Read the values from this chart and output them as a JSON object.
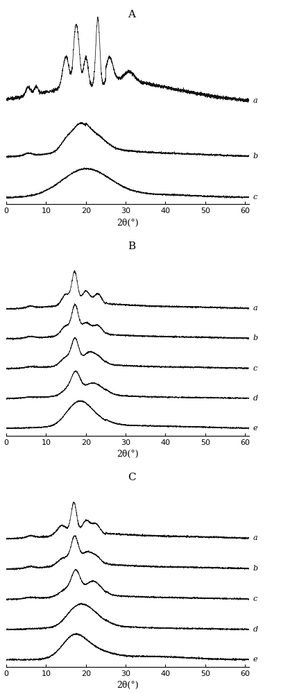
{
  "panel_labels": [
    "A",
    "B",
    "C"
  ],
  "xlabel": "2θ(°)",
  "xlim": [
    0,
    61
  ],
  "xticks": [
    0,
    10,
    20,
    30,
    40,
    50,
    60
  ],
  "background_color": "#ffffff",
  "line_color": "#111111",
  "label_fontsize": 9,
  "tick_fontsize": 8,
  "panel_label_fontsize": 11,
  "curve_label_fontsize": 8
}
